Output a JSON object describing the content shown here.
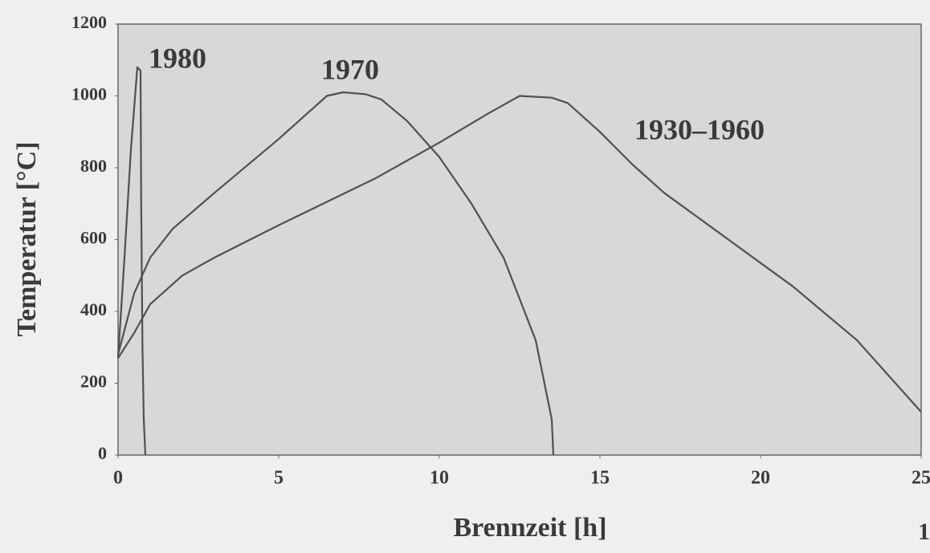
{
  "chart_data": {
    "type": "line",
    "xlabel": "Brennzeit [h]",
    "ylabel": "Temperatur [°C]",
    "xlim": [
      0,
      25
    ],
    "xticks": [
      0,
      5,
      10,
      15,
      20,
      25
    ],
    "ylim": [
      0,
      1200
    ],
    "yticks": [
      0,
      200,
      400,
      600,
      800,
      1000,
      1200
    ],
    "grid": false,
    "series": [
      {
        "name": "1980",
        "color": "#505050",
        "x": [
          0,
          0.2,
          0.4,
          0.6,
          0.7,
          0.72,
          0.76,
          0.8,
          0.85
        ],
        "values": [
          270,
          550,
          850,
          1080,
          1070,
          700,
          300,
          100,
          0
        ]
      },
      {
        "name": "1970",
        "color": "#505050",
        "x": [
          0,
          0.5,
          1,
          1.7,
          3,
          5,
          6,
          6.5,
          7,
          7.7,
          8.2,
          9,
          10,
          11,
          12,
          13,
          13.5,
          13.55
        ],
        "values": [
          280,
          450,
          550,
          630,
          730,
          880,
          960,
          1000,
          1010,
          1005,
          990,
          930,
          830,
          700,
          550,
          320,
          100,
          0
        ]
      },
      {
        "name": "1930–1960",
        "color": "#505050",
        "x": [
          0,
          0.5,
          1,
          2,
          3,
          5,
          8,
          10,
          11.5,
          12.5,
          13.5,
          14,
          15,
          16,
          17,
          19,
          21,
          23,
          25
        ],
        "values": [
          270,
          340,
          420,
          500,
          550,
          640,
          770,
          870,
          950,
          1000,
          995,
          980,
          900,
          810,
          730,
          600,
          470,
          320,
          120
        ]
      }
    ],
    "page_number": "1"
  }
}
